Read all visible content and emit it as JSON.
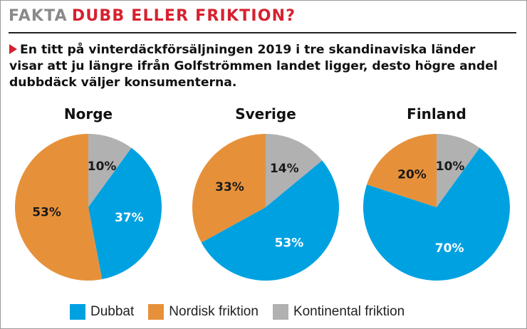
{
  "header": {
    "label": "FAKTA",
    "title": "DUBB ELLER FRIKTION?"
  },
  "intro": "En titt på vinterdäckförsäljningen 2019 i tre skandinaviska länder visar att ju längre ifrån Golfströmmen landet ligger, desto högre andel dubbdäck väljer konsumenterna.",
  "colors": {
    "dubbat": "#00a1e1",
    "nordisk": "#e6913a",
    "kontinental": "#b1b1b1",
    "accent": "#d6212f"
  },
  "chart_data": [
    {
      "type": "pie",
      "title": "Norge",
      "categories": [
        "Dubbat",
        "Nordisk friktion",
        "Kontinental friktion"
      ],
      "values": [
        37,
        53,
        10
      ],
      "labels": [
        "37%",
        "53%",
        "10%"
      ]
    },
    {
      "type": "pie",
      "title": "Sverige",
      "categories": [
        "Dubbat",
        "Nordisk friktion",
        "Kontinental friktion"
      ],
      "values": [
        53,
        33,
        14
      ],
      "labels": [
        "53%",
        "33%",
        "14%"
      ]
    },
    {
      "type": "pie",
      "title": "Finland",
      "categories": [
        "Dubbat",
        "Nordisk friktion",
        "Kontinental friktion"
      ],
      "values": [
        70,
        20,
        10
      ],
      "labels": [
        "70%",
        "20%",
        "10%"
      ]
    }
  ],
  "legend": [
    {
      "label": "Dubbat",
      "color_key": "dubbat"
    },
    {
      "label": "Nordisk friktion",
      "color_key": "nordisk"
    },
    {
      "label": "Kontinental friktion",
      "color_key": "kontinental"
    }
  ]
}
